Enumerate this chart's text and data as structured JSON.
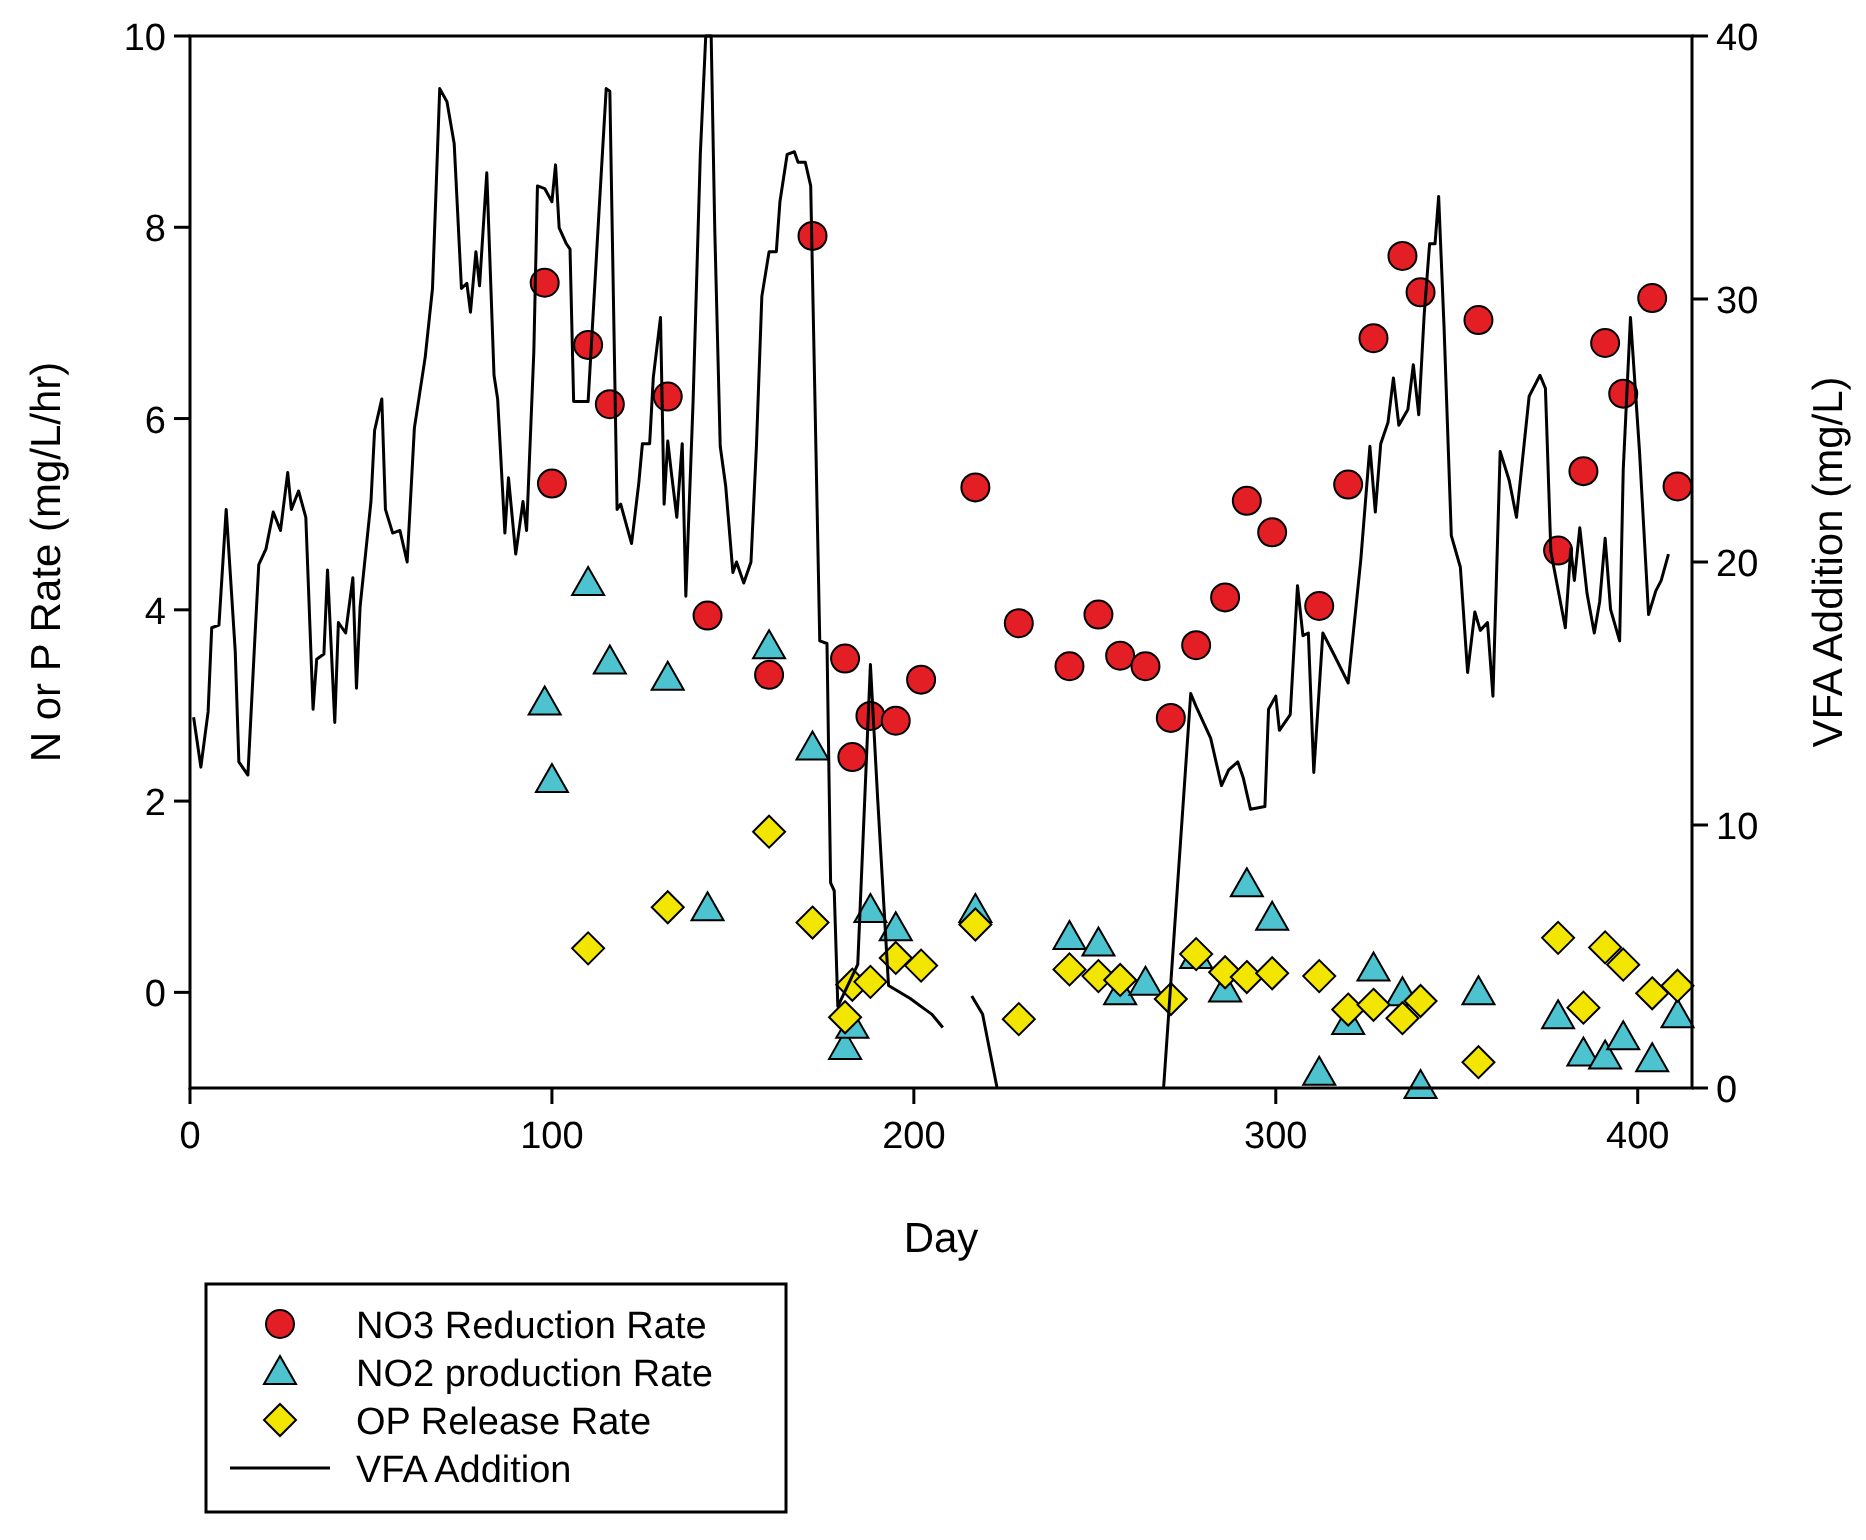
{
  "chart_data": {
    "type": "scatter",
    "xlabel": "Day",
    "ylabel": "N or P Rate (mg/L/hr)",
    "y2label": "VFA Addition (mg/L)",
    "xlim": [
      0,
      415
    ],
    "xticks": [
      0,
      100,
      200,
      300,
      400
    ],
    "ylim": [
      -1,
      10
    ],
    "yticks": [
      0,
      2,
      4,
      6,
      8,
      10
    ],
    "y2lim": [
      0,
      40
    ],
    "y2ticks": [
      0,
      10,
      20,
      30,
      40
    ],
    "grid": false,
    "legend": "bottom left",
    "series": [
      {
        "name": "NO3 Reduction Rate",
        "marker": "circle",
        "color": "#e31e24",
        "x": [
          98,
          100,
          110,
          116,
          132,
          143,
          160,
          172,
          181,
          183,
          188,
          195,
          202,
          217,
          229,
          243,
          251,
          257,
          264,
          271,
          278,
          286,
          292,
          299,
          312,
          320,
          327,
          335,
          340,
          356,
          378,
          385,
          391,
          396,
          404,
          411
        ],
        "values": [
          7.42,
          5.32,
          6.77,
          6.15,
          6.23,
          3.94,
          3.32,
          7.91,
          3.49,
          2.46,
          2.89,
          2.84,
          3.27,
          5.28,
          3.86,
          3.41,
          3.95,
          3.52,
          3.41,
          2.87,
          3.63,
          4.13,
          5.14,
          4.81,
          4.04,
          5.31,
          6.84,
          7.7,
          7.32,
          7.03,
          4.62,
          5.45,
          6.79,
          6.26,
          7.26,
          5.29
        ]
      },
      {
        "name": "NO2 production Rate",
        "marker": "triangle",
        "color": "#4dc3d0",
        "x": [
          98,
          100,
          110,
          116,
          132,
          143,
          160,
          172,
          181,
          183,
          188,
          195,
          217,
          243,
          251,
          257,
          264,
          278,
          286,
          292,
          299,
          312,
          320,
          327,
          335,
          340,
          356,
          378,
          385,
          391,
          396,
          404,
          411
        ],
        "values": [
          3.03,
          2.22,
          4.28,
          3.46,
          3.29,
          0.88,
          3.62,
          2.56,
          -0.57,
          -0.35,
          0.86,
          0.67,
          0.86,
          0.58,
          0.51,
          0.0,
          0.1,
          0.38,
          0.03,
          1.13,
          0.78,
          -0.84,
          -0.31,
          0.25,
          -0.01,
          -0.98,
          0.0,
          -0.25,
          -0.64,
          -0.67,
          -0.47,
          -0.7,
          -0.24
        ]
      },
      {
        "name": "OP Release Rate",
        "marker": "diamond",
        "color": "#f2e600",
        "x": [
          110,
          132,
          160,
          172,
          181,
          183,
          188,
          195,
          202,
          217,
          229,
          243,
          251,
          257,
          271,
          278,
          286,
          292,
          299,
          312,
          320,
          327,
          335,
          340,
          356,
          378,
          385,
          391,
          396,
          404,
          411
        ],
        "values": [
          0.46,
          0.89,
          1.68,
          0.73,
          -0.26,
          0.08,
          0.11,
          0.36,
          0.28,
          0.71,
          -0.28,
          0.24,
          0.17,
          0.13,
          -0.07,
          0.4,
          0.21,
          0.16,
          0.2,
          0.17,
          -0.18,
          -0.13,
          -0.27,
          -0.09,
          -0.73,
          0.57,
          -0.16,
          0.47,
          0.29,
          -0.01,
          0.07
        ]
      },
      {
        "name": "VFA Addition",
        "type": "line",
        "axis": "y2",
        "marker": "none",
        "line_style": "solid",
        "color": "#000000",
        "x": [
          1,
          3,
          5,
          6,
          8,
          10,
          12.5,
          13.5,
          16,
          18,
          19,
          21,
          23,
          25,
          27,
          28,
          30,
          32,
          34,
          35,
          37,
          38,
          40,
          41,
          43,
          45,
          46,
          47,
          50,
          51,
          53,
          54,
          56,
          58,
          60,
          62,
          65,
          67,
          69,
          71,
          73,
          75,
          76.5,
          77.5,
          79,
          80,
          82,
          84,
          85,
          87,
          88,
          90,
          92,
          93,
          95,
          96,
          98,
          100,
          101,
          102,
          104,
          105,
          106,
          110,
          113,
          115,
          116,
          118,
          119,
          122,
          124,
          125,
          127,
          128,
          130,
          131,
          132,
          133,
          134.5,
          136,
          137,
          139,
          141,
          142.5,
          144,
          145,
          146.5,
          148,
          150,
          151,
          153,
          155,
          156.5,
          158,
          160,
          162,
          163,
          165,
          167,
          168,
          170,
          171.5,
          174,
          176,
          177,
          178,
          179,
          184.5,
          188,
          190,
          193,
          199,
          203,
          205,
          208,
          212,
          216,
          219,
          223,
          245,
          269,
          276.5,
          278,
          282,
          285,
          287,
          289.5,
          291,
          293,
          297,
          298,
          300,
          301,
          304,
          306,
          307.5,
          309,
          310.5,
          313,
          316,
          320,
          323.5,
          326,
          327.5,
          329,
          331,
          332.5,
          334,
          336.5,
          338,
          339.5,
          341,
          342.5,
          344,
          345,
          346.5,
          348.5,
          351,
          353,
          355,
          356.5,
          358.5,
          360,
          362,
          364.5,
          366.5,
          370,
          373,
          374.5,
          376,
          380,
          381.5,
          382.5,
          384,
          386,
          388,
          389.5,
          391,
          392.5,
          395,
          396,
          398,
          400.5,
          403,
          405,
          406.5,
          408.5
        ],
        "values": [
          14.1,
          12.2,
          14.3,
          17.5,
          17.6,
          22.0,
          16.6,
          12.4,
          11.9,
          17.3,
          19.9,
          20.5,
          21.9,
          21.2,
          23.4,
          22.0,
          22.7,
          21.7,
          14.4,
          16.3,
          16.5,
          19.7,
          13.9,
          17.7,
          17.3,
          19.4,
          15.2,
          18.3,
          22.3,
          25.0,
          26.2,
          22.0,
          21.1,
          21.2,
          20.0,
          25.1,
          27.8,
          30.4,
          38.0,
          37.5,
          35.9,
          30.4,
          30.6,
          29.5,
          31.8,
          30.5,
          34.8,
          27.1,
          26.2,
          21.1,
          23.2,
          20.3,
          22.3,
          21.2,
          28.0,
          34.3,
          34.2,
          33.7,
          35.1,
          32.7,
          32.1,
          31.9,
          26.1,
          26.1,
          33.3,
          38.0,
          37.9,
          22.0,
          22.2,
          20.7,
          23.0,
          24.5,
          24.5,
          27.0,
          29.3,
          22.2,
          24.6,
          23.4,
          21.7,
          24.5,
          18.7,
          26.1,
          35.5,
          40.0,
          40.0,
          32.6,
          24.4,
          22.9,
          19.6,
          20.0,
          19.2,
          20.0,
          24.4,
          30.1,
          31.8,
          31.8,
          33.7,
          35.5,
          35.6,
          35.2,
          35.2,
          34.3,
          17.0,
          16.9,
          7.8,
          7.5,
          3.1,
          4.7,
          16.1,
          11.0,
          3.9,
          3.4,
          3.0,
          2.8,
          2.3,
          null,
          3.5,
          2.8,
          0,
          null,
          0,
          15.0,
          14.5,
          13.3,
          11.5,
          12.1,
          12.4,
          11.8,
          10.6,
          10.7,
          14.4,
          14.9,
          13.6,
          14.2,
          19.1,
          17.2,
          17.3,
          12.0,
          17.3,
          16.5,
          15.4,
          20.1,
          24.4,
          21.9,
          24.5,
          25.3,
          27.0,
          25.2,
          25.8,
          27.5,
          25.6,
          29.4,
          32.1,
          32.1,
          33.9,
          28.9,
          21.0,
          19.8,
          15.8,
          18.1,
          17.4,
          17.7,
          14.9,
          24.2,
          23.1,
          21.7,
          26.3,
          27.1,
          26.6,
          20.4,
          17.5,
          20.5,
          19.3,
          21.3,
          18.8,
          17.3,
          18.5,
          20.9,
          18.2,
          17.0,
          23.5,
          29.3,
          24.2,
          18.0,
          18.9,
          19.3,
          20.3
        ]
      }
    ]
  }
}
